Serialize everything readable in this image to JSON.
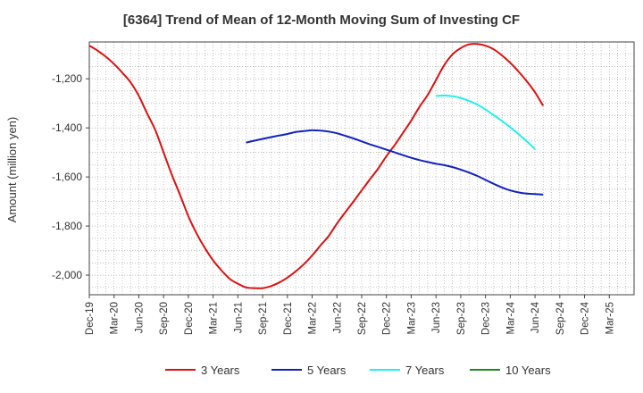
{
  "chart_data": {
    "type": "line",
    "title": "[6364]  Trend of Mean of 12-Month Moving Sum of Investing CF",
    "xlabel": "",
    "ylabel": "Amount (million yen)",
    "ylim": [
      -2080,
      -1050
    ],
    "yticks": [
      -1200,
      -1400,
      -1600,
      -1800,
      -2000
    ],
    "ytick_labels": [
      "-1,200",
      "-1,400",
      "-1,600",
      "-1,800",
      "-2,000"
    ],
    "xtick_labels": [
      "Dec-19",
      "Mar-20",
      "Jun-20",
      "Sep-20",
      "Dec-20",
      "Mar-21",
      "Jun-21",
      "Sep-21",
      "Dec-21",
      "Mar-22",
      "Jun-22",
      "Sep-22",
      "Dec-22",
      "Mar-23",
      "Jun-23",
      "Sep-23",
      "Dec-23",
      "Mar-24",
      "Jun-24",
      "Sep-24",
      "Dec-24",
      "Mar-25"
    ],
    "grid": true,
    "legend_position": "bottom",
    "series": [
      {
        "name": "3 Years",
        "color": "#dd1111",
        "points": [
          [
            0,
            -1065
          ],
          [
            0.33,
            -1085
          ],
          [
            0.67,
            -1110
          ],
          [
            1,
            -1140
          ],
          [
            1.33,
            -1175
          ],
          [
            1.67,
            -1215
          ],
          [
            2,
            -1270
          ],
          [
            2.33,
            -1340
          ],
          [
            2.67,
            -1410
          ],
          [
            3,
            -1500
          ],
          [
            3.33,
            -1590
          ],
          [
            3.67,
            -1675
          ],
          [
            4,
            -1760
          ],
          [
            4.33,
            -1830
          ],
          [
            4.67,
            -1890
          ],
          [
            5,
            -1940
          ],
          [
            5.33,
            -1980
          ],
          [
            5.67,
            -2015
          ],
          [
            6,
            -2035
          ],
          [
            6.33,
            -2050
          ],
          [
            6.67,
            -2053
          ],
          [
            7,
            -2053
          ],
          [
            7.33,
            -2045
          ],
          [
            7.67,
            -2030
          ],
          [
            8,
            -2010
          ],
          [
            8.33,
            -1985
          ],
          [
            8.67,
            -1955
          ],
          [
            9,
            -1920
          ],
          [
            9.33,
            -1880
          ],
          [
            9.67,
            -1840
          ],
          [
            10,
            -1790
          ],
          [
            10.33,
            -1745
          ],
          [
            10.67,
            -1700
          ],
          [
            11,
            -1655
          ],
          [
            11.33,
            -1610
          ],
          [
            11.67,
            -1565
          ],
          [
            12,
            -1515
          ],
          [
            12.33,
            -1470
          ],
          [
            12.67,
            -1420
          ],
          [
            13,
            -1370
          ],
          [
            13.33,
            -1315
          ],
          [
            13.67,
            -1265
          ],
          [
            14,
            -1205
          ],
          [
            14.33,
            -1145
          ],
          [
            14.67,
            -1100
          ],
          [
            15,
            -1075
          ],
          [
            15.33,
            -1060
          ],
          [
            15.67,
            -1058
          ],
          [
            16,
            -1065
          ],
          [
            16.33,
            -1080
          ],
          [
            16.67,
            -1105
          ],
          [
            17,
            -1135
          ],
          [
            17.33,
            -1170
          ],
          [
            17.67,
            -1210
          ],
          [
            18,
            -1255
          ],
          [
            18.33,
            -1310
          ]
        ]
      },
      {
        "name": "5 Years",
        "color": "#1122bb",
        "points": [
          [
            6.33,
            -1460
          ],
          [
            6.67,
            -1452
          ],
          [
            7,
            -1445
          ],
          [
            7.33,
            -1438
          ],
          [
            7.67,
            -1431
          ],
          [
            8,
            -1425
          ],
          [
            8.33,
            -1417
          ],
          [
            8.67,
            -1413
          ],
          [
            9,
            -1410
          ],
          [
            9.33,
            -1411
          ],
          [
            9.67,
            -1415
          ],
          [
            10,
            -1422
          ],
          [
            10.33,
            -1432
          ],
          [
            10.67,
            -1443
          ],
          [
            11,
            -1455
          ],
          [
            11.33,
            -1467
          ],
          [
            11.67,
            -1478
          ],
          [
            12,
            -1489
          ],
          [
            12.33,
            -1500
          ],
          [
            12.67,
            -1511
          ],
          [
            13,
            -1522
          ],
          [
            13.33,
            -1531
          ],
          [
            13.67,
            -1539
          ],
          [
            14,
            -1546
          ],
          [
            14.33,
            -1552
          ],
          [
            14.67,
            -1560
          ],
          [
            15,
            -1570
          ],
          [
            15.33,
            -1582
          ],
          [
            15.67,
            -1596
          ],
          [
            16,
            -1612
          ],
          [
            16.33,
            -1628
          ],
          [
            16.67,
            -1643
          ],
          [
            17,
            -1655
          ],
          [
            17.33,
            -1663
          ],
          [
            17.67,
            -1668
          ],
          [
            18,
            -1670
          ],
          [
            18.33,
            -1672
          ]
        ]
      },
      {
        "name": "7 Years",
        "color": "#22eeee",
        "points": [
          [
            14,
            -1270
          ],
          [
            14.33,
            -1268
          ],
          [
            14.67,
            -1271
          ],
          [
            15,
            -1278
          ],
          [
            15.33,
            -1290
          ],
          [
            15.67,
            -1305
          ],
          [
            16,
            -1325
          ],
          [
            16.33,
            -1348
          ],
          [
            16.67,
            -1372
          ],
          [
            17,
            -1398
          ],
          [
            17.33,
            -1425
          ],
          [
            17.67,
            -1455
          ],
          [
            18,
            -1487
          ]
        ]
      },
      {
        "name": "10 Years",
        "color": "#228822",
        "points": []
      }
    ]
  }
}
